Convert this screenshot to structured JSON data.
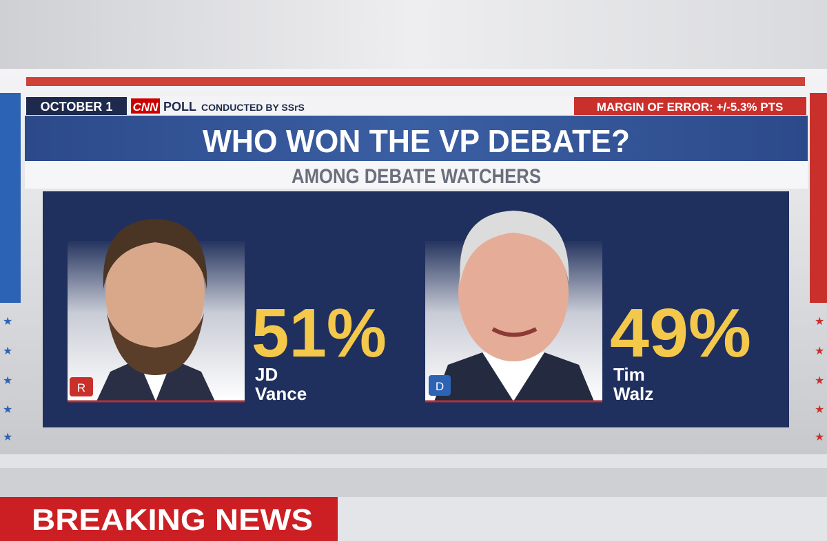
{
  "header": {
    "date": "OCTOBER 1",
    "network": "CNN",
    "poll": "POLL",
    "conducted_by": "CONDUCTED BY SSrS",
    "margin": "MARGIN OF ERROR: +/-5.3% PTS"
  },
  "title": "WHO WON THE VP DEBATE?",
  "subtitle": "AMONG DEBATE WATCHERS",
  "candidates": [
    {
      "percent": "51%",
      "first_name": "JD",
      "last_name": "Vance",
      "party": "R"
    },
    {
      "percent": "49%",
      "first_name": "Tim",
      "last_name": "Walz",
      "party": "D"
    }
  ],
  "banner": "BREAKING NEWS"
}
